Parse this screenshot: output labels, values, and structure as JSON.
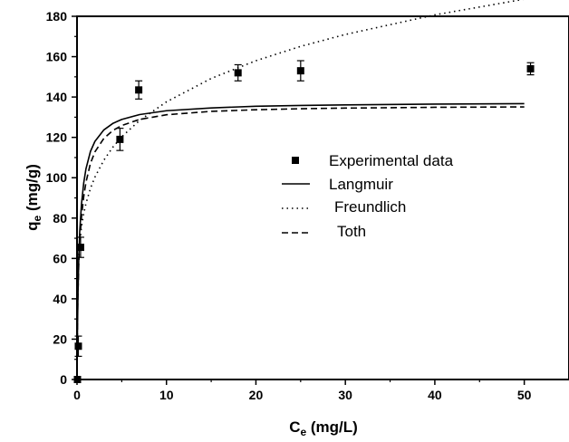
{
  "chart_data": {
    "type": "scatter",
    "xlabel": {
      "main": "C",
      "sub": "e",
      "unit": " (mg/L)"
    },
    "ylabel": {
      "main": "q",
      "sub": "e",
      "unit": " (mg/g)"
    },
    "xlim": [
      0,
      55
    ],
    "ylim": [
      0,
      180
    ],
    "xticks": [
      0,
      10,
      20,
      30,
      40,
      50
    ],
    "yticks": [
      0,
      20,
      40,
      60,
      80,
      100,
      120,
      140,
      160,
      180
    ],
    "grid": false,
    "legend_position": "center-right",
    "experimental": {
      "name": "Experimental data",
      "x": [
        0.05,
        0.15,
        0.4,
        4.8,
        6.9,
        18.0,
        25.0,
        50.7
      ],
      "y": [
        0,
        16.5,
        65.5,
        119,
        143.5,
        152,
        153,
        154
      ],
      "err": [
        0,
        5,
        5,
        5.5,
        4.5,
        4.0,
        5.0,
        3.0
      ]
    },
    "models": [
      {
        "name": "Langmuir",
        "style": "solid",
        "x": [
          0,
          0.05,
          0.1,
          0.2,
          0.3,
          0.5,
          0.75,
          1,
          1.5,
          2,
          3,
          4,
          5,
          7,
          10,
          15,
          20,
          25,
          30,
          40,
          50
        ],
        "y": [
          0,
          24.3,
          40.6,
          60.9,
          73.1,
          87.0,
          97.4,
          104.4,
          113.0,
          118.0,
          123.7,
          126.9,
          128.9,
          131.3,
          133.2,
          134.6,
          135.4,
          135.8,
          136.1,
          136.5,
          136.7
        ]
      },
      {
        "name": "Freundlich",
        "style": "dotted",
        "x": [
          0,
          0.05,
          0.1,
          0.2,
          0.3,
          0.5,
          0.75,
          1,
          1.5,
          2,
          3,
          4,
          5,
          7,
          10,
          15,
          20,
          25,
          30,
          40,
          50
        ],
        "y": [
          0,
          46.4,
          53.8,
          62.4,
          68.0,
          75.6,
          82.3,
          87.2,
          94.7,
          100.3,
          108.7,
          115.1,
          120.3,
          128.4,
          137.6,
          149.2,
          158.0,
          165.1,
          171.0,
          180.7,
          188.5
        ]
      },
      {
        "name": "Toth",
        "style": "dashed",
        "x": [
          0,
          0.05,
          0.1,
          0.2,
          0.3,
          0.5,
          0.75,
          1,
          1.5,
          2,
          3,
          4,
          5,
          7,
          10,
          15,
          20,
          25,
          30,
          40,
          50
        ],
        "y": [
          0,
          28.1,
          41.6,
          58.0,
          68.2,
          80.6,
          90.6,
          97.7,
          107.1,
          112.8,
          119.5,
          123.4,
          125.9,
          128.9,
          131.2,
          132.9,
          133.7,
          134.2,
          134.5,
          134.9,
          135.1
        ]
      }
    ]
  }
}
